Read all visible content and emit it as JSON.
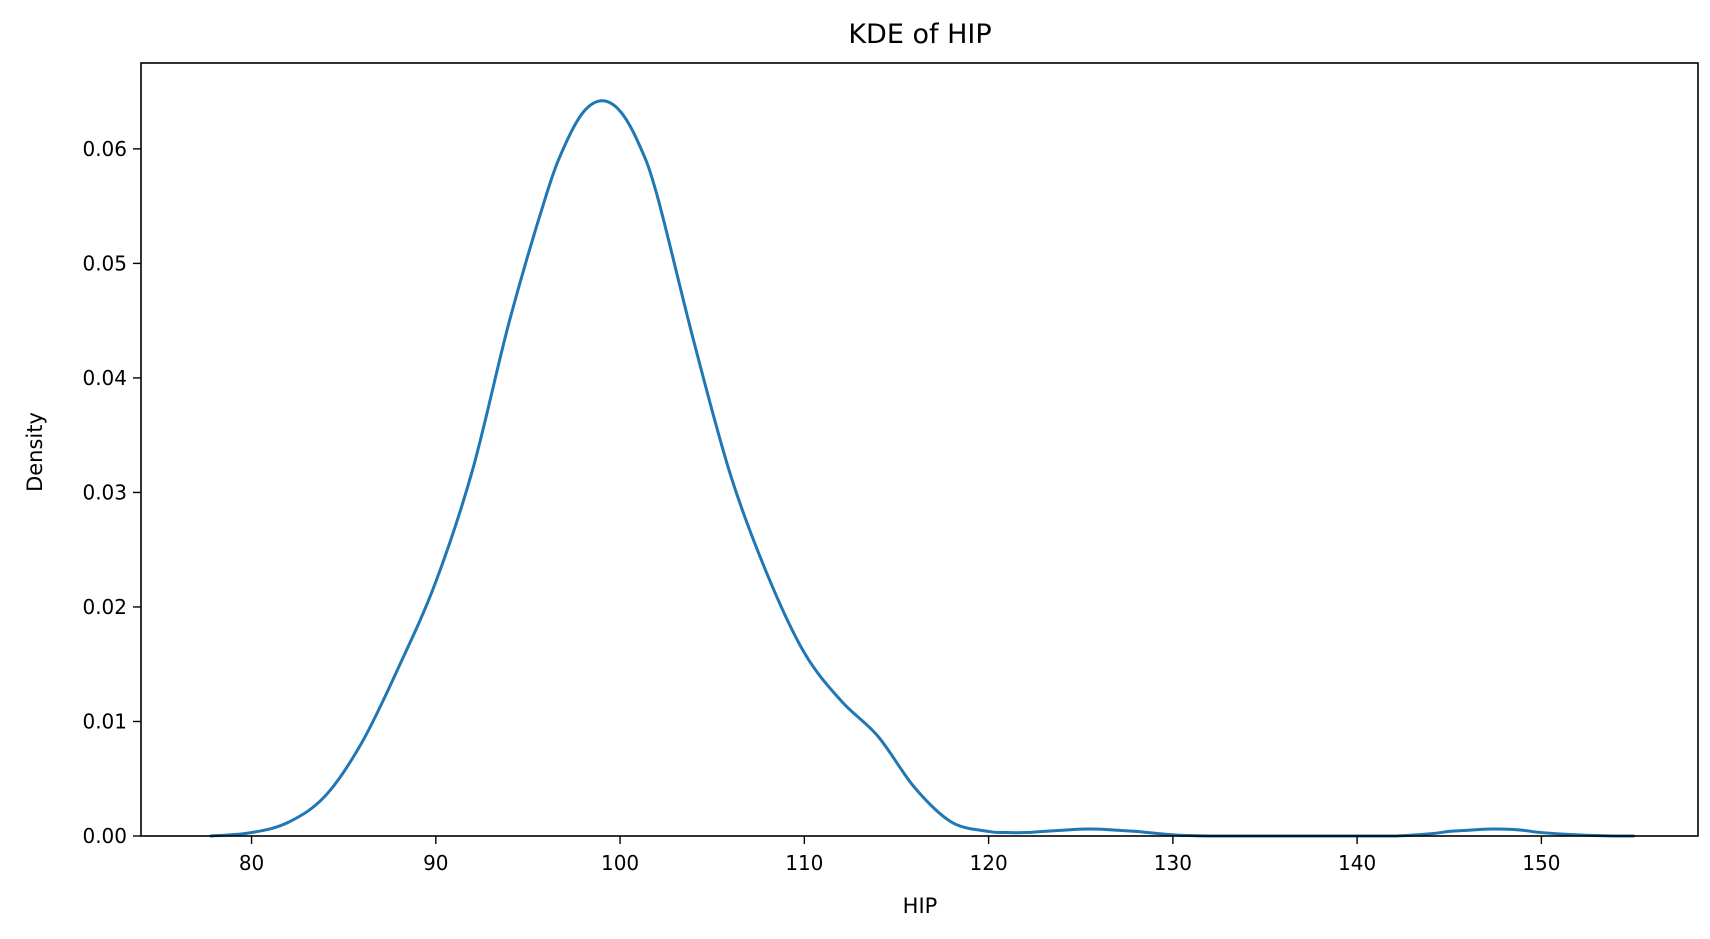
{
  "chart_data": {
    "type": "line",
    "title": "KDE of HIP",
    "xlabel": "HIP",
    "ylabel": "Density",
    "xlim": [
      74,
      158.5
    ],
    "ylim": [
      0,
      0.0675
    ],
    "xticks": [
      80,
      90,
      100,
      110,
      120,
      130,
      140,
      150
    ],
    "yticks": [
      0.0,
      0.01,
      0.02,
      0.03,
      0.04,
      0.05,
      0.06
    ],
    "ytick_labels": [
      "0.00",
      "0.01",
      "0.02",
      "0.03",
      "0.04",
      "0.05",
      "0.06"
    ],
    "grid": false,
    "line_color": "#1f77b4",
    "series": [
      {
        "x": [
          77.8,
          80,
          82,
          84,
          86,
          88,
          90,
          92,
          94,
          96,
          97,
          98,
          99,
          100,
          101,
          102,
          104,
          106,
          108,
          110,
          112,
          114,
          116,
          118,
          120,
          121,
          122,
          123,
          124,
          125,
          126,
          127,
          128,
          130,
          132,
          134,
          136,
          138,
          140,
          142,
          144,
          145,
          146,
          147,
          148,
          149,
          150,
          152,
          154,
          155
        ],
        "values": [
          0.0,
          0.0003,
          0.0012,
          0.0035,
          0.0082,
          0.0148,
          0.0222,
          0.032,
          0.045,
          0.056,
          0.0603,
          0.0632,
          0.0642,
          0.0633,
          0.0605,
          0.056,
          0.0432,
          0.0315,
          0.0228,
          0.016,
          0.0118,
          0.0087,
          0.0042,
          0.0012,
          0.0004,
          0.0003,
          0.0003,
          0.0004,
          0.0005,
          0.0006,
          0.0006,
          0.0005,
          0.0004,
          0.0001,
          0.0,
          0.0,
          0.0,
          0.0,
          0.0,
          0.0,
          0.0002,
          0.0004,
          0.0005,
          0.0006,
          0.0006,
          0.0005,
          0.0003,
          0.0001,
          0.0,
          0.0
        ]
      }
    ]
  }
}
